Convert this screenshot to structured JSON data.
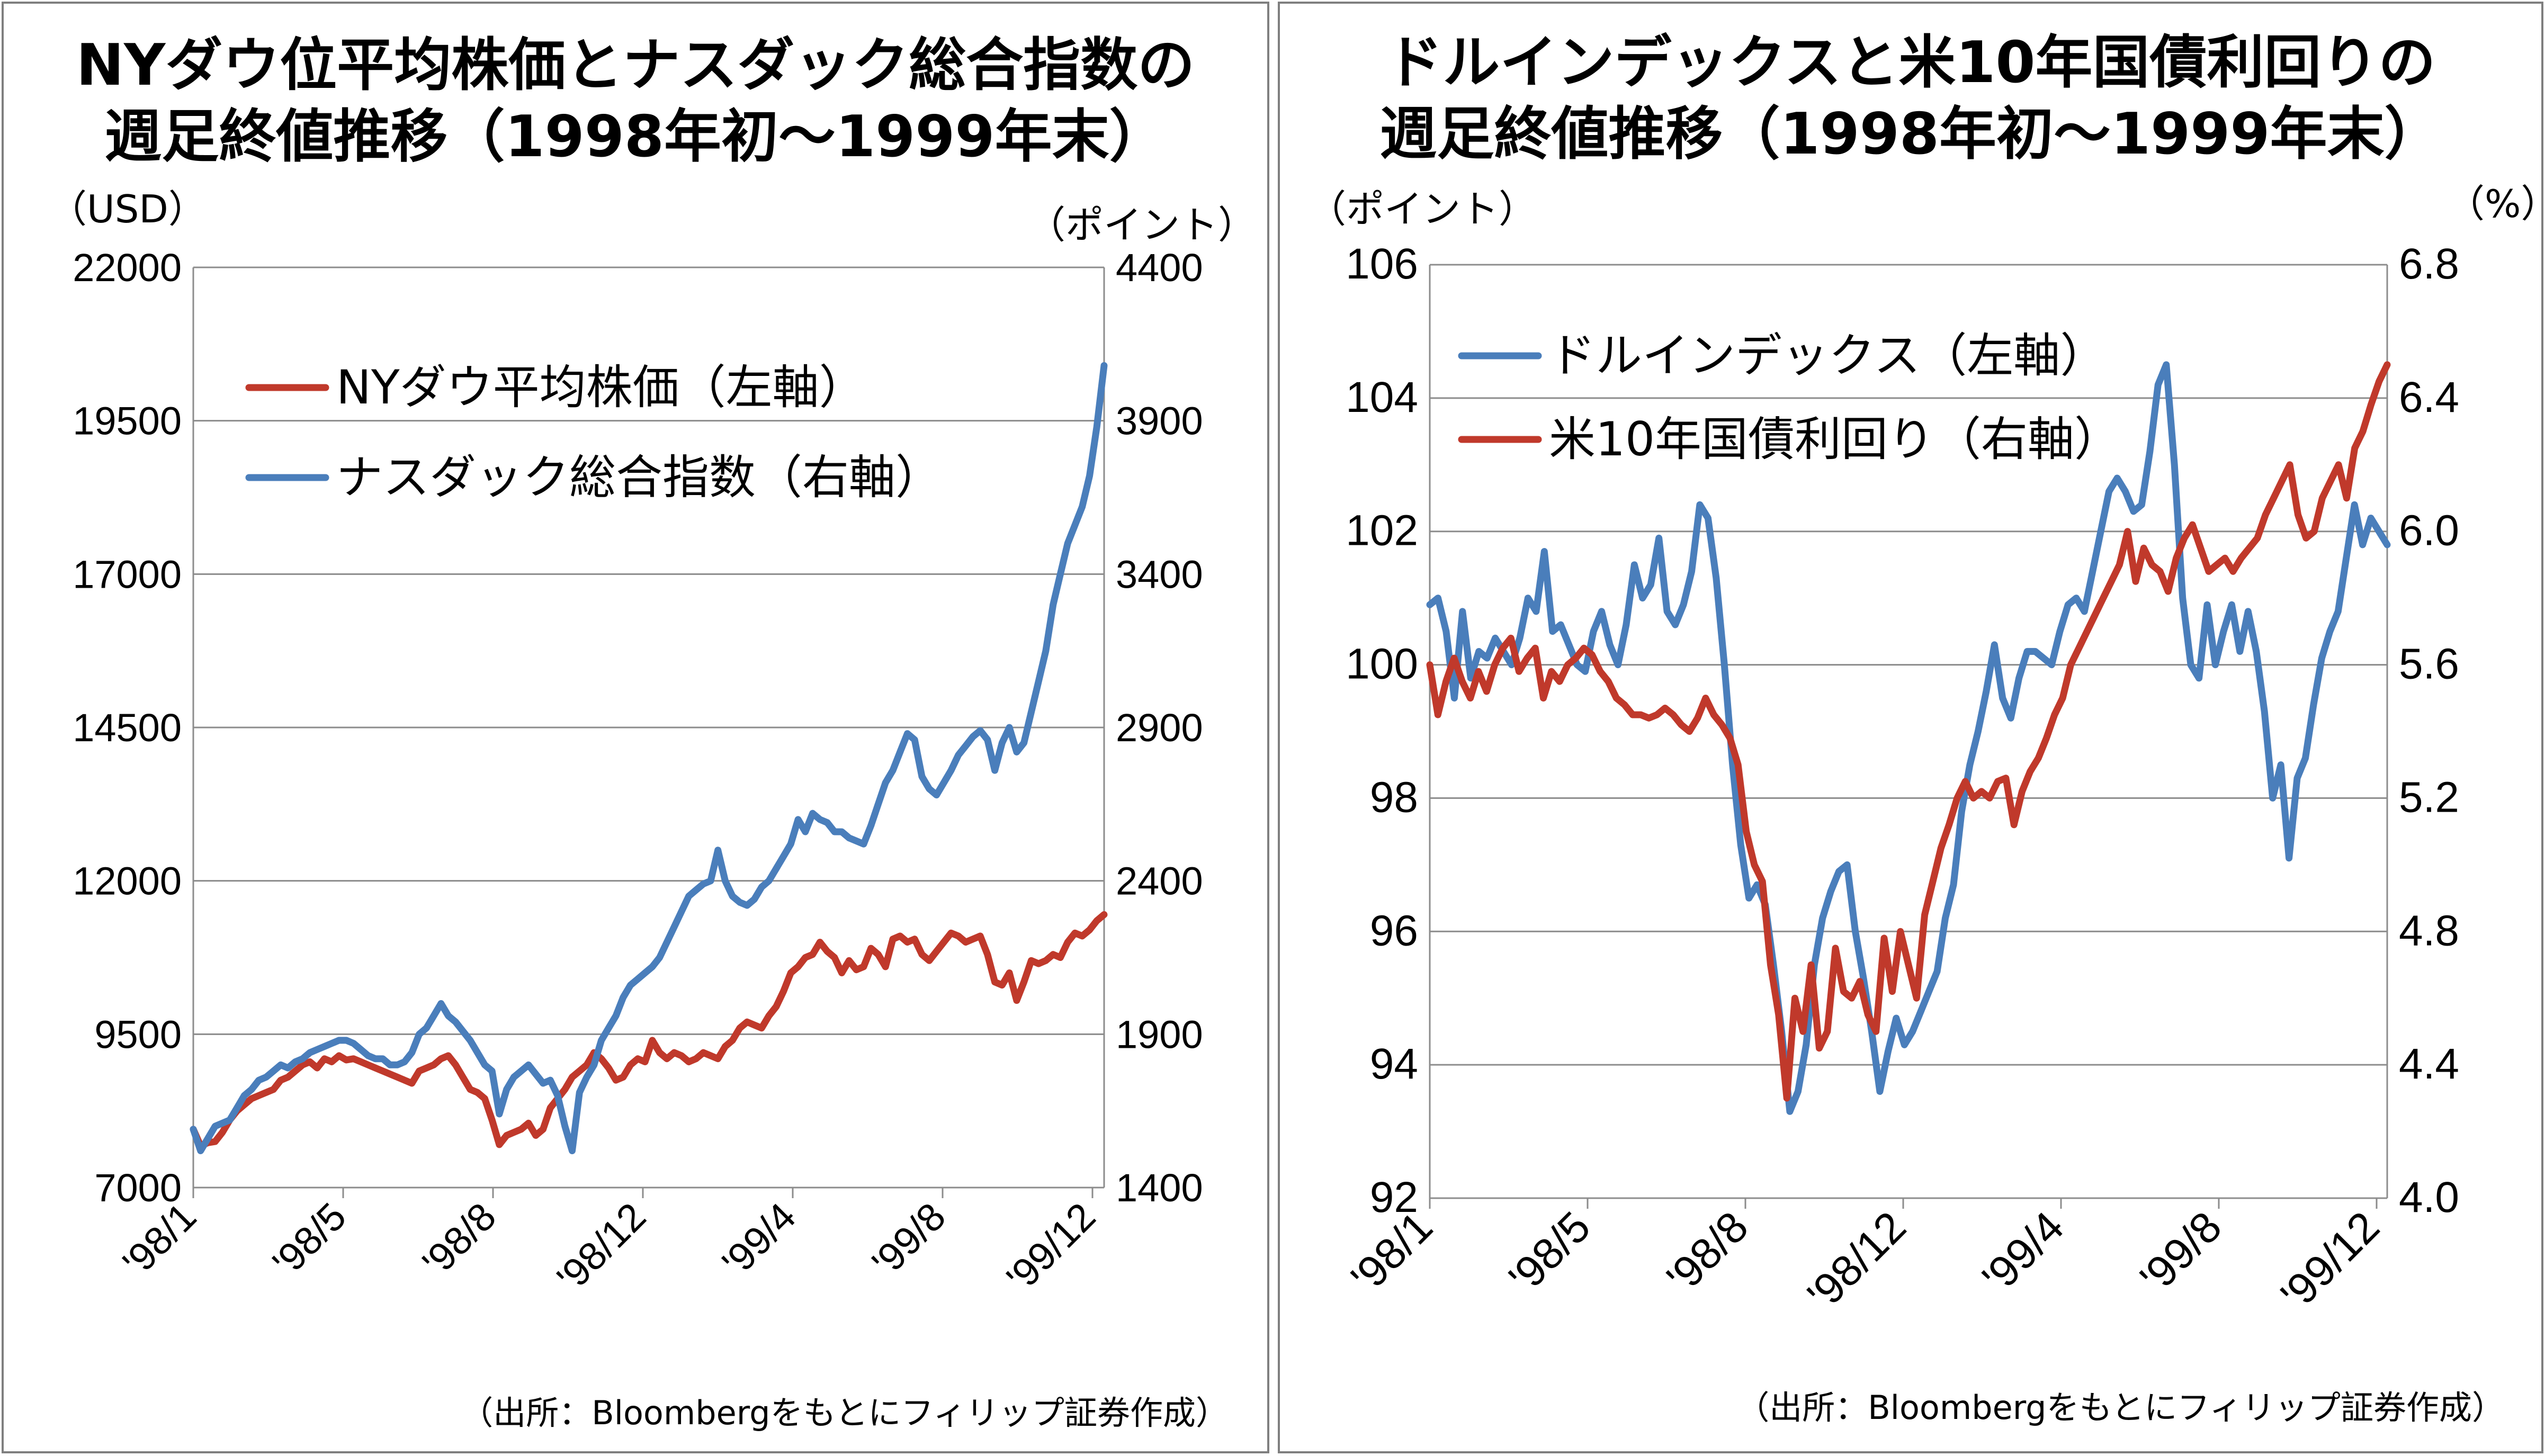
{
  "chart_data": [
    {
      "type": "line",
      "title": "NYダウ位平均株価とナスダック総合指数の",
      "subtitle": "週足終値推移（1998年初～1999年末）",
      "y_left_unit": "（USD）",
      "y_right_unit": "（ポイント）",
      "x_ticks": [
        "'98/1",
        "'98/5",
        "'98/8",
        "'98/12",
        "'99/4",
        "'99/8",
        "'99/12"
      ],
      "y_left_ticks": [
        "22000",
        "19500",
        "17000",
        "14500",
        "12000",
        "9500",
        "7000"
      ],
      "y_right_ticks": [
        "4400",
        "3900",
        "3400",
        "2900",
        "2400",
        "1900",
        "1400"
      ],
      "ylim_left": [
        7000,
        22000
      ],
      "ylim_right": [
        1400,
        4400
      ],
      "grid": "horizontal",
      "legend_position": "top-left",
      "source": "（出所：Bloombergをもとにフィリップ証券作成）",
      "series": [
        {
          "name": "NYダウ平均株価（左軸）",
          "axis": "left",
          "color": "#c0392b",
          "values": [
            7950,
            7680,
            7730,
            7750,
            7900,
            8100,
            8250,
            8350,
            8450,
            8500,
            8550,
            8600,
            8750,
            8800,
            8900,
            9000,
            9050,
            8950,
            9100,
            9050,
            9150,
            9080,
            9100,
            9050,
            9000,
            8950,
            8900,
            8850,
            8800,
            8750,
            8700,
            8900,
            8950,
            9000,
            9100,
            9150,
            9000,
            8800,
            8600,
            8550,
            8450,
            8100,
            7700,
            7850,
            7900,
            7950,
            8050,
            7850,
            7950,
            8300,
            8450,
            8600,
            8800,
            8900,
            9000,
            9200,
            9100,
            8950,
            8750,
            8800,
            9000,
            9100,
            9050,
            9400,
            9200,
            9100,
            9200,
            9150,
            9050,
            9100,
            9200,
            9150,
            9100,
            9300,
            9400,
            9600,
            9700,
            9650,
            9600,
            9800,
            9950,
            10200,
            10500,
            10600,
            10750,
            10800,
            11000,
            10850,
            10750,
            10500,
            10700,
            10550,
            10600,
            10900,
            10800,
            10600,
            11050,
            11100,
            11000,
            11050,
            10800,
            10700,
            10850,
            11000,
            11150,
            11100,
            11000,
            11050,
            11100,
            10800,
            10350,
            10300,
            10500,
            10050,
            10350,
            10700,
            10650,
            10700,
            10800,
            10750,
            11000,
            11150,
            11100,
            11200,
            11350,
            11450
          ]
        },
        {
          "name": "ナスダック総合指数（右軸）",
          "axis": "right",
          "color": "#4a7ebb",
          "values": [
            1590,
            1520,
            1560,
            1600,
            1610,
            1620,
            1660,
            1700,
            1720,
            1750,
            1760,
            1780,
            1800,
            1790,
            1810,
            1820,
            1840,
            1850,
            1860,
            1870,
            1880,
            1880,
            1870,
            1850,
            1830,
            1820,
            1820,
            1800,
            1800,
            1810,
            1840,
            1900,
            1920,
            1960,
            2000,
            1960,
            1940,
            1910,
            1880,
            1840,
            1800,
            1780,
            1640,
            1720,
            1760,
            1780,
            1800,
            1770,
            1740,
            1750,
            1700,
            1600,
            1520,
            1710,
            1760,
            1800,
            1880,
            1920,
            1960,
            2020,
            2060,
            2080,
            2100,
            2120,
            2150,
            2200,
            2250,
            2300,
            2350,
            2370,
            2390,
            2400,
            2500,
            2400,
            2350,
            2330,
            2320,
            2340,
            2380,
            2400,
            2440,
            2480,
            2520,
            2600,
            2560,
            2620,
            2600,
            2590,
            2560,
            2560,
            2540,
            2530,
            2520,
            2580,
            2650,
            2720,
            2760,
            2820,
            2880,
            2860,
            2740,
            2700,
            2680,
            2720,
            2760,
            2810,
            2840,
            2870,
            2890,
            2860,
            2760,
            2850,
            2900,
            2820,
            2850,
            2950,
            3050,
            3150,
            3300,
            3400,
            3500,
            3560,
            3620,
            3720,
            3880,
            4080
          ]
        }
      ]
    },
    {
      "type": "line",
      "title": "ドルインデックスと米10年国債利回りの",
      "subtitle": "週足終値推移（1998年初～1999年末）",
      "y_left_unit": "（ポイント）",
      "y_right_unit": "（%）",
      "x_ticks": [
        "'98/1",
        "'98/5",
        "'98/8",
        "'98/12",
        "'99/4",
        "'99/8",
        "'99/12"
      ],
      "y_left_ticks": [
        "106",
        "104",
        "102",
        "100",
        "98",
        "96",
        "94",
        "92"
      ],
      "y_right_ticks": [
        "6.8",
        "6.4",
        "6.0",
        "5.6",
        "5.2",
        "4.8",
        "4.4",
        "4.0"
      ],
      "ylim_left": [
        92,
        106
      ],
      "ylim_right": [
        4.0,
        6.8
      ],
      "grid": "horizontal",
      "legend_position": "top-left",
      "source": "（出所：Bloombergをもとにフィリップ証券作成）",
      "series": [
        {
          "name": "ドルインデックス（左軸）",
          "axis": "left",
          "color": "#4a7ebb",
          "values": [
            100.9,
            101.0,
            100.5,
            99.5,
            100.8,
            99.8,
            100.2,
            100.1,
            100.4,
            100.2,
            100.0,
            100.4,
            101.0,
            100.8,
            101.7,
            100.5,
            100.6,
            100.3,
            100.0,
            99.9,
            100.5,
            100.8,
            100.3,
            100.0,
            100.6,
            101.5,
            101.0,
            101.2,
            101.9,
            100.8,
            100.6,
            100.9,
            101.4,
            102.4,
            102.2,
            101.3,
            100.0,
            98.5,
            97.3,
            96.5,
            96.7,
            96.4,
            95.5,
            94.5,
            93.3,
            93.6,
            94.3,
            95.5,
            96.2,
            96.6,
            96.9,
            97.0,
            96.0,
            95.3,
            94.5,
            93.6,
            94.2,
            94.7,
            94.3,
            94.5,
            94.8,
            95.1,
            95.4,
            96.2,
            96.7,
            97.8,
            98.5,
            99.0,
            99.6,
            100.3,
            99.5,
            99.2,
            99.8,
            100.2,
            100.2,
            100.1,
            100.0,
            100.5,
            100.9,
            101.0,
            100.8,
            101.4,
            102.0,
            102.6,
            102.8,
            102.6,
            102.3,
            102.4,
            103.2,
            104.2,
            104.5,
            103.0,
            101.0,
            100.0,
            99.8,
            100.9,
            100.0,
            100.5,
            100.9,
            100.2,
            100.8,
            100.2,
            99.3,
            98.0,
            98.5,
            97.1,
            98.3,
            98.6,
            99.4,
            100.1,
            100.5,
            100.8,
            101.6,
            102.4,
            101.8,
            102.2,
            102.0,
            101.8
          ]
        },
        {
          "name": "米10年国債利回り（右軸）",
          "axis": "right",
          "color": "#c0392b",
          "values": [
            5.6,
            5.45,
            5.55,
            5.62,
            5.55,
            5.5,
            5.58,
            5.52,
            5.6,
            5.65,
            5.68,
            5.58,
            5.62,
            5.65,
            5.5,
            5.58,
            5.55,
            5.6,
            5.62,
            5.65,
            5.63,
            5.58,
            5.55,
            5.5,
            5.48,
            5.45,
            5.45,
            5.44,
            5.45,
            5.47,
            5.45,
            5.42,
            5.4,
            5.44,
            5.5,
            5.45,
            5.42,
            5.38,
            5.3,
            5.1,
            5.0,
            4.95,
            4.7,
            4.55,
            4.3,
            4.6,
            4.5,
            4.7,
            4.45,
            4.5,
            4.75,
            4.62,
            4.6,
            4.65,
            4.55,
            4.5,
            4.78,
            4.62,
            4.8,
            4.7,
            4.6,
            4.85,
            4.95,
            5.05,
            5.12,
            5.2,
            5.25,
            5.2,
            5.22,
            5.2,
            5.25,
            5.26,
            5.12,
            5.22,
            5.28,
            5.32,
            5.38,
            5.45,
            5.5,
            5.6,
            5.65,
            5.7,
            5.75,
            5.8,
            5.85,
            5.9,
            6.0,
            5.85,
            5.95,
            5.9,
            5.88,
            5.82,
            5.92,
            5.98,
            6.02,
            5.95,
            5.88,
            5.9,
            5.92,
            5.88,
            5.92,
            5.95,
            5.98,
            6.05,
            6.1,
            6.15,
            6.2,
            6.05,
            5.98,
            6.0,
            6.1,
            6.15,
            6.2,
            6.1,
            6.25,
            6.3,
            6.38,
            6.45,
            6.5
          ]
        }
      ]
    }
  ]
}
